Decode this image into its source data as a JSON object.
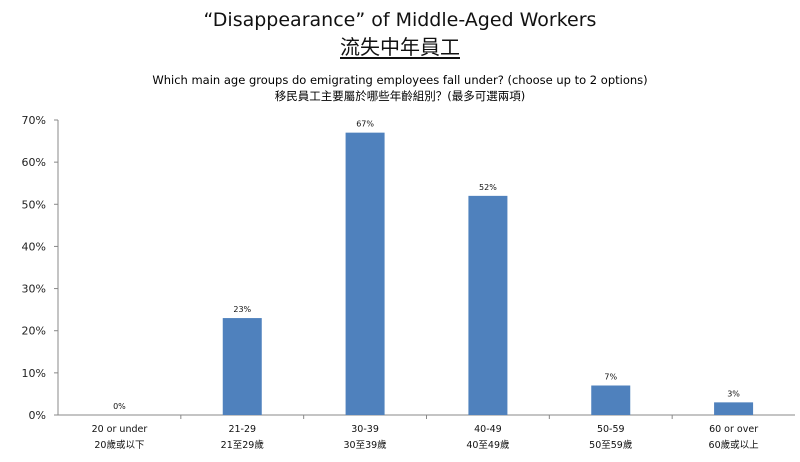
{
  "chart_data": {
    "type": "bar",
    "title": "“Disappearance” of Middle-Aged Workers",
    "subtitle": "流失中年員工",
    "question_en": "Which main age groups do emigrating employees fall under? (choose up to 2 options)",
    "question_zh": "移民員工主要屬於哪些年齡組別？(最多可選兩項)",
    "categories_en": [
      "20 or under",
      "21-29",
      "30-39",
      "40-49",
      "50-59",
      "60 or over"
    ],
    "categories_zh": [
      "20歲或以下",
      "21至29歲",
      "30至39歲",
      "40至49歲",
      "50至59歲",
      "60歲或以上"
    ],
    "values": [
      0,
      23,
      67,
      52,
      7,
      3
    ],
    "data_labels": [
      "0%",
      "23%",
      "67%",
      "52%",
      "7%",
      "3%"
    ],
    "y_ticks": [
      "0%",
      "10%",
      "20%",
      "30%",
      "40%",
      "50%",
      "60%",
      "70%"
    ],
    "ylim": [
      0,
      70
    ],
    "bar_color": "#4F81BD",
    "grid": false,
    "legend": "none"
  }
}
